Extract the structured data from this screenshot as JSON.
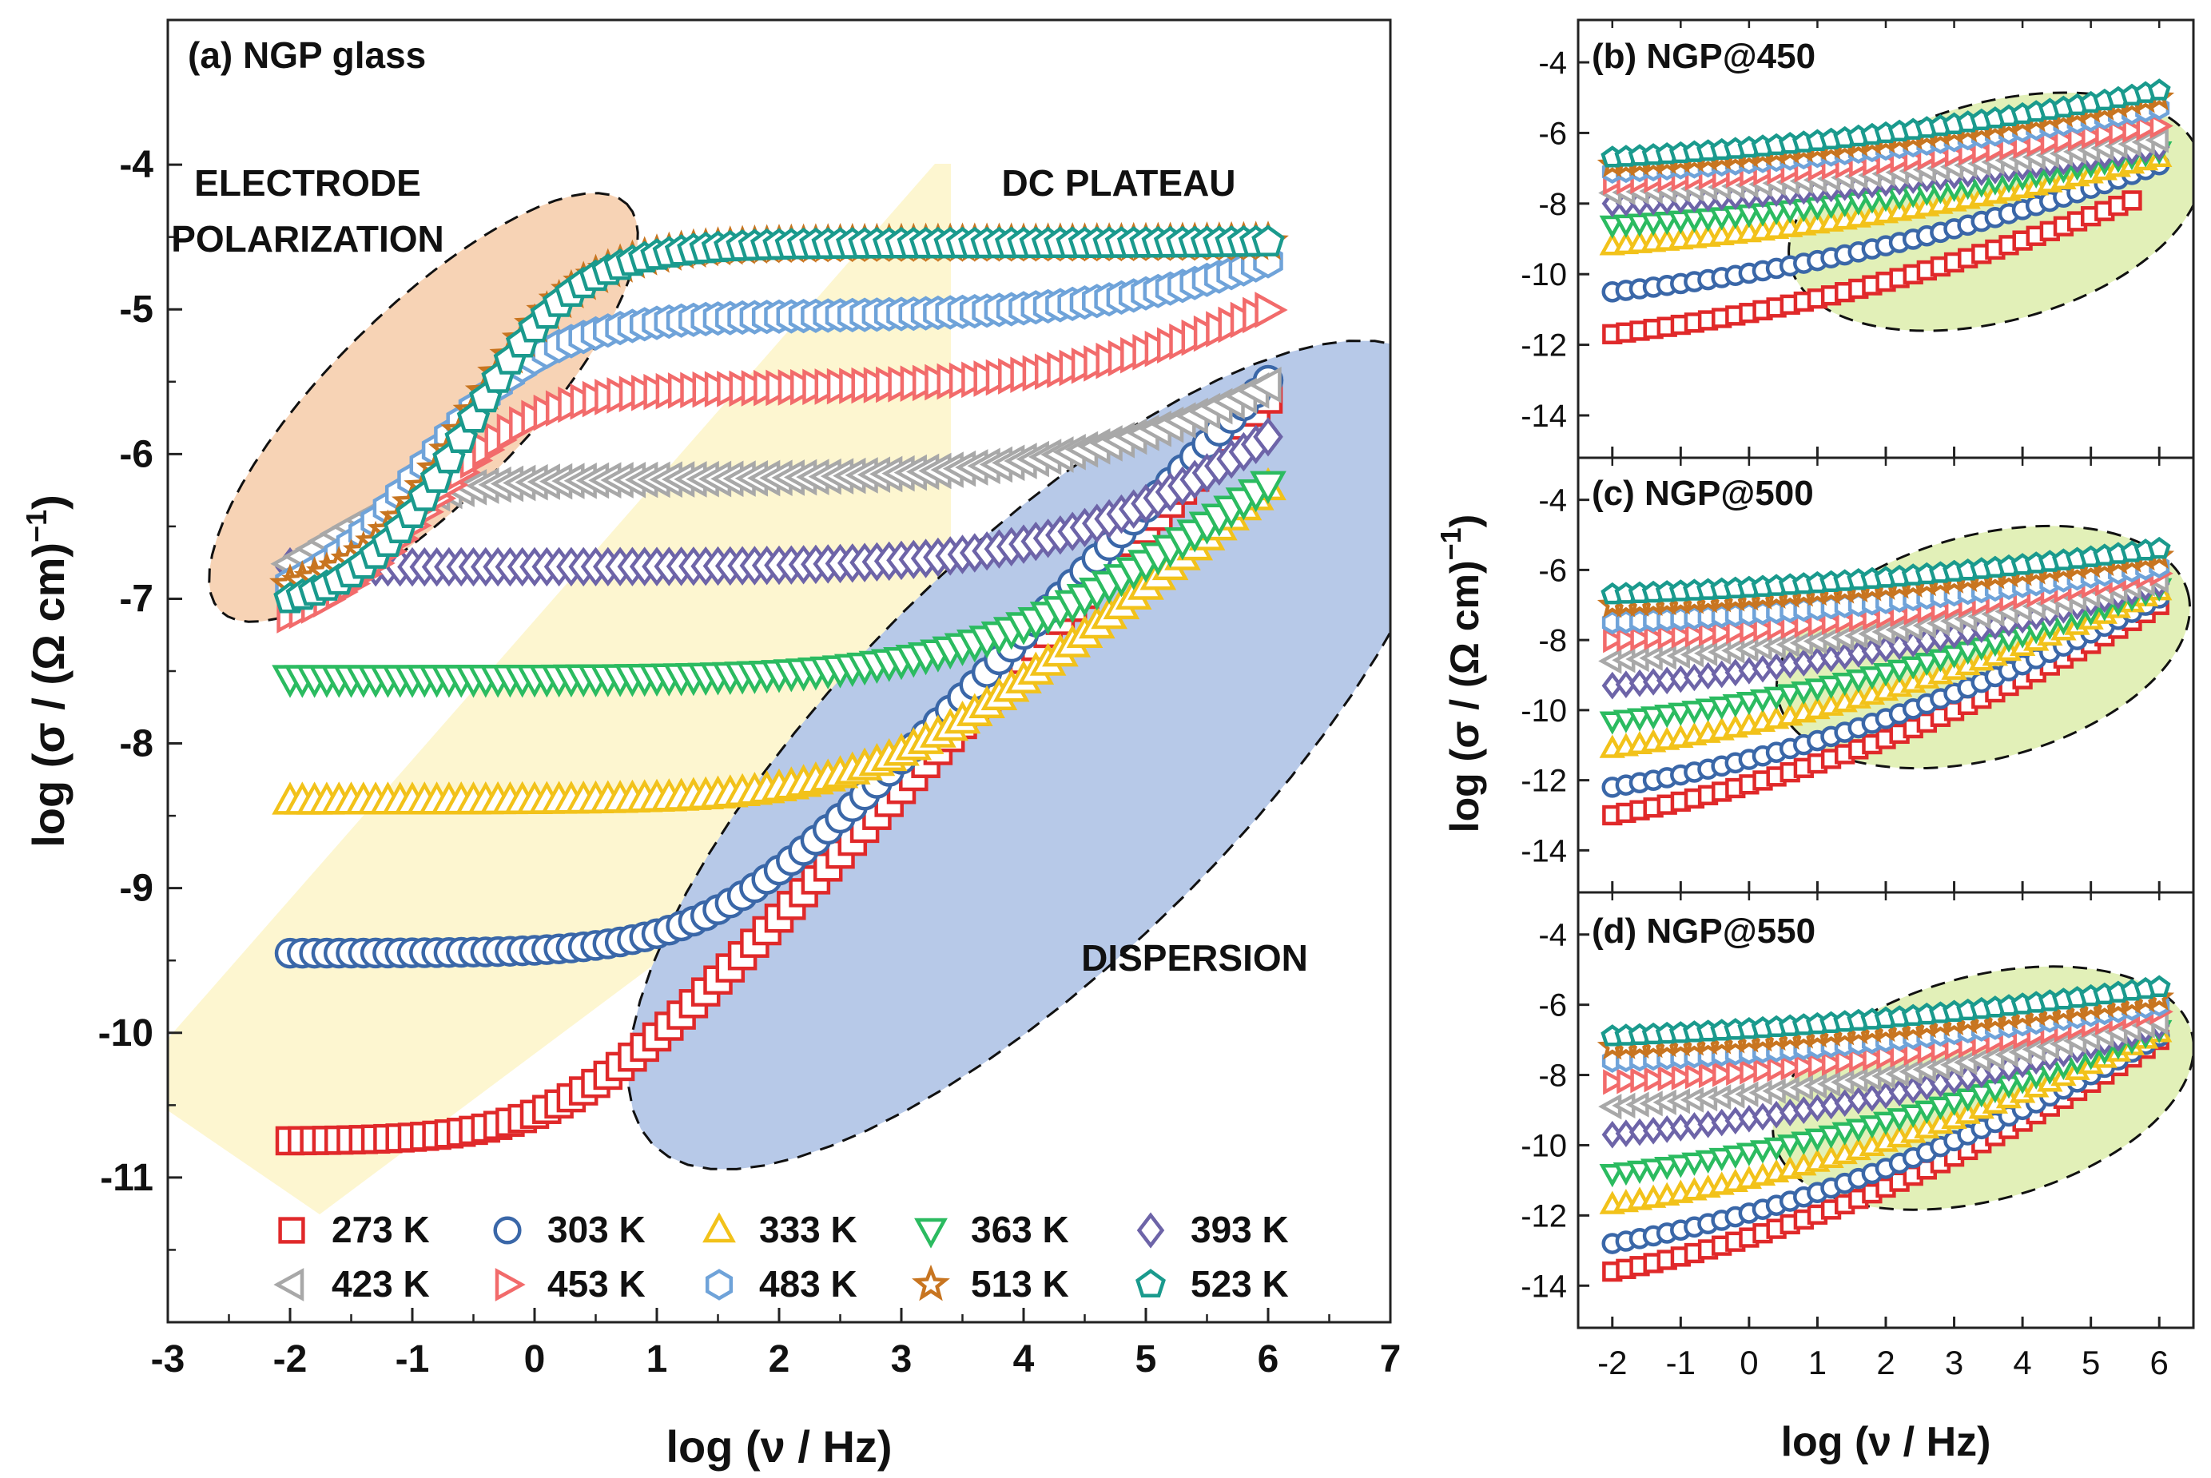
{
  "figure": {
    "colors": {
      "273": "#e0292a",
      "303": "#3a67a8",
      "333": "#f2c21a",
      "363": "#2bbb60",
      "393": "#6d64a8",
      "423": "#a8a8a8",
      "453": "#f26b6b",
      "483": "#6fa3d9",
      "513": "#c87520",
      "523": "#1a9a8d",
      "band": "#fdf4c8",
      "orange_region": "#f7d3b5",
      "blue_region": "#b7c9e8",
      "green_region": "#e2f0b8"
    },
    "legend": [
      {
        "key": "273",
        "label": "273 K",
        "marker": "square"
      },
      {
        "key": "303",
        "label": "303 K",
        "marker": "circle"
      },
      {
        "key": "333",
        "label": "333 K",
        "marker": "triangle-up"
      },
      {
        "key": "363",
        "label": "363 K",
        "marker": "triangle-down"
      },
      {
        "key": "393",
        "label": "393 K",
        "marker": "diamond"
      },
      {
        "key": "423",
        "label": "423 K",
        "marker": "triangle-left"
      },
      {
        "key": "453",
        "label": "453 K",
        "marker": "triangle-right"
      },
      {
        "key": "483",
        "label": "483 K",
        "marker": "hexagon"
      },
      {
        "key": "513",
        "label": "513 K",
        "marker": "star"
      },
      {
        "key": "523",
        "label": "523 K",
        "marker": "pentagon"
      }
    ]
  },
  "chart_data": [
    {
      "type": "scatter",
      "title": "(a) NGP glass",
      "xlabel": "log (ν / Hz)",
      "ylabel": "log (σ / (Ω cm)−1)",
      "xlim": [
        -3,
        7
      ],
      "ylim": [
        -12,
        -3
      ],
      "xticks": [
        "-3",
        "-2",
        "-1",
        "0",
        "1",
        "2",
        "3",
        "4",
        "5",
        "6",
        "7"
      ],
      "yticks": [
        "-4",
        "-5",
        "-6",
        "-7",
        "-8",
        "-9",
        "-10",
        "-11"
      ],
      "annotations": {
        "electrode": "ELECTRODE",
        "polarization": "POLARIZATION",
        "dc": "DC PLATEAU",
        "dispersion": "DISPERSION"
      },
      "x_range": [
        -2,
        6
      ],
      "series": [
        {
          "name": "273 K",
          "key": "273",
          "sigma_dc": -10.75,
          "nu_c": 0.3,
          "n": 0.9
        },
        {
          "name": "303 K",
          "key": "303",
          "sigma_dc": -9.45,
          "nu_c": 1.5,
          "n": 0.88
        },
        {
          "name": "333 K",
          "key": "333",
          "sigma_dc": -8.4,
          "nu_c": 2.9,
          "n": 0.7
        },
        {
          "name": "363 K",
          "key": "363",
          "sigma_dc": -7.55,
          "nu_c": 3.8,
          "n": 0.6
        },
        {
          "name": "393 K",
          "key": "393",
          "sigma_dc": -6.78,
          "nu_c": 4.6,
          "n": 0.6
        },
        {
          "name": "423 K",
          "key": "423",
          "sigma_dc": -6.18,
          "nu_c": 4.9,
          "n": 0.5,
          "ep_amp": 0.95,
          "ep_center": -1.8,
          "ep_w": 0.45
        },
        {
          "name": "453 K",
          "key": "453",
          "sigma_dc": -5.55,
          "nu_c": 5.2,
          "n": 0.5,
          "ep_amp": 1.7,
          "ep_center": -0.9,
          "ep_w": 0.45
        },
        {
          "name": "483 K",
          "key": "483",
          "sigma_dc": -5.05,
          "nu_c": 5.7,
          "n": 0.5,
          "ep_amp": 2.05,
          "ep_center": -0.9,
          "ep_w": 0.5
        },
        {
          "name": "513 K",
          "key": "513",
          "sigma_dc": -4.55,
          "nu_c": 9,
          "n": 0.5,
          "ep_amp": 2.45,
          "ep_center": -0.55,
          "ep_w": 0.45
        },
        {
          "name": "523 K",
          "key": "523",
          "sigma_dc": -4.55,
          "nu_c": 9,
          "n": 0.5,
          "ep_amp": 2.55,
          "ep_center": -0.55,
          "ep_w": 0.45
        }
      ]
    },
    {
      "type": "scatter",
      "title": "(b) NGP@450",
      "xlim": [
        -2.5,
        6.5
      ],
      "ylim": [
        -15.2,
        -2.8
      ],
      "xticks": [
        "-2",
        "-1",
        "0",
        "1",
        "2",
        "3",
        "4",
        "5",
        "6"
      ],
      "yticks": [
        "-4",
        "-6",
        "-8",
        "-10",
        "-12",
        "-14"
      ],
      "x_range": [
        -2,
        6
      ],
      "series": [
        {
          "name": "273 K",
          "key": "273",
          "start": -11.7,
          "end": -7.6,
          "x_end": 5.6
        },
        {
          "name": "303 K",
          "key": "303",
          "start": -10.5,
          "end": -6.9
        },
        {
          "name": "333 K",
          "key": "333",
          "start": -9.2,
          "end": -6.7
        },
        {
          "name": "363 K",
          "key": "363",
          "start": -8.6,
          "end": -6.5
        },
        {
          "name": "393 K",
          "key": "393",
          "start": -8.0,
          "end": -6.4
        },
        {
          "name": "423 K",
          "key": "423",
          "start": -7.7,
          "end": -6.2
        },
        {
          "name": "453 K",
          "key": "453",
          "start": -7.4,
          "end": -5.8
        },
        {
          "name": "483 K",
          "key": "483",
          "start": -7.1,
          "end": -5.3
        },
        {
          "name": "513 K",
          "key": "513",
          "start": -6.9,
          "end": -5.0
        },
        {
          "name": "523 K",
          "key": "523",
          "start": -6.7,
          "end": -4.8
        }
      ]
    },
    {
      "type": "scatter",
      "title": "(c) NGP@500",
      "xlim": [
        -2.5,
        6.5
      ],
      "ylim": [
        -15.2,
        -2.8
      ],
      "xticks": [
        "-2",
        "-1",
        "0",
        "1",
        "2",
        "3",
        "4",
        "5",
        "6"
      ],
      "yticks": [
        "-4",
        "-6",
        "-8",
        "-10",
        "-12",
        "-14"
      ],
      "x_range": [
        -2,
        6
      ],
      "series": [
        {
          "name": "273 K",
          "key": "273",
          "start": -13.0,
          "end": -7.0
        },
        {
          "name": "303 K",
          "key": "303",
          "start": -12.2,
          "end": -6.8
        },
        {
          "name": "333 K",
          "key": "333",
          "start": -11.1,
          "end": -6.6
        },
        {
          "name": "363 K",
          "key": "363",
          "start": -10.3,
          "end": -6.5
        },
        {
          "name": "393 K",
          "key": "393",
          "start": -9.3,
          "end": -6.4
        },
        {
          "name": "423 K",
          "key": "423",
          "start": -8.6,
          "end": -6.3
        },
        {
          "name": "453 K",
          "key": "453",
          "start": -8.0,
          "end": -6.1
        },
        {
          "name": "483 K",
          "key": "483",
          "start": -7.5,
          "end": -5.9
        },
        {
          "name": "513 K",
          "key": "513",
          "start": -7.0,
          "end": -5.6
        },
        {
          "name": "523 K",
          "key": "523",
          "start": -6.7,
          "end": -5.4
        }
      ]
    },
    {
      "type": "scatter",
      "title": "(d) NGP@550",
      "xlim": [
        -2.5,
        6.5
      ],
      "ylim": [
        -15.2,
        -2.8
      ],
      "xticks": [
        "-2",
        "-1",
        "0",
        "1",
        "2",
        "3",
        "4",
        "5",
        "6"
      ],
      "yticks": [
        "-4",
        "-6",
        "-8",
        "-10",
        "-12",
        "-14"
      ],
      "x_range": [
        -2,
        6
      ],
      "series": [
        {
          "name": "273 K",
          "key": "273",
          "start": -13.6,
          "end": -7.0
        },
        {
          "name": "303 K",
          "key": "303",
          "start": -12.8,
          "end": -6.9
        },
        {
          "name": "333 K",
          "key": "333",
          "start": -11.7,
          "end": -6.8
        },
        {
          "name": "363 K",
          "key": "363",
          "start": -10.8,
          "end": -6.7
        },
        {
          "name": "393 K",
          "key": "393",
          "start": -9.7,
          "end": -6.6
        },
        {
          "name": "423 K",
          "key": "423",
          "start": -8.9,
          "end": -6.5
        },
        {
          "name": "453 K",
          "key": "453",
          "start": -8.2,
          "end": -6.2
        },
        {
          "name": "483 K",
          "key": "483",
          "start": -7.6,
          "end": -6.0
        },
        {
          "name": "513 K",
          "key": "513",
          "start": -7.2,
          "end": -5.8
        },
        {
          "name": "523 K",
          "key": "523",
          "start": -6.9,
          "end": -5.5
        }
      ]
    }
  ],
  "side_axes": {
    "xlabel": "log (ν / Hz)",
    "ylabel": "log (σ / (Ω cm)−1)"
  }
}
